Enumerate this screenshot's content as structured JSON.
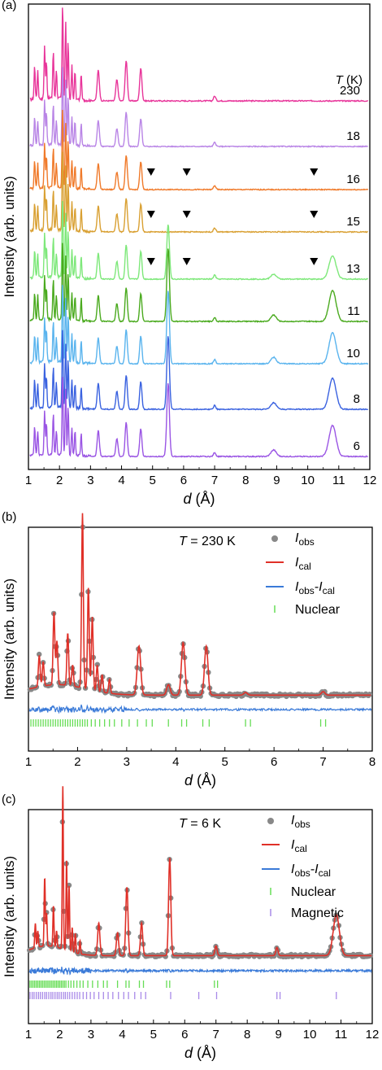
{
  "chart_data": [
    {
      "panel_label": "(a)",
      "type": "line",
      "title": "",
      "xlabel": "d (Å)",
      "xlabel_var": "d",
      "xlabel_unit": " (Å)",
      "ylabel": "Intensity (arb. units)",
      "xlim": [
        1,
        12
      ],
      "xticks": [
        1,
        2,
        3,
        4,
        5,
        6,
        7,
        8,
        9,
        10,
        11,
        12
      ],
      "temperature_header": {
        "var": "T",
        "unit": " (K)"
      },
      "series": [
        {
          "name": "230",
          "color": "#e8359a",
          "magnetic": false,
          "magnetic_peaks": [
            5.5,
            10.8
          ],
          "magnetic_fraction": 0.0
        },
        {
          "name": "18",
          "color": "#b985e6",
          "magnetic": false,
          "magnetic_peaks": [
            5.5,
            10.8
          ],
          "magnetic_fraction": 0.0
        },
        {
          "name": "16",
          "color": "#f07a2a",
          "magnetic": false,
          "magnetic_peaks": [
            5.5,
            10.8
          ],
          "magnetic_fraction": 0.0
        },
        {
          "name": "15",
          "color": "#d9a032",
          "magnetic": false,
          "magnetic_peaks": [
            5.5,
            10.8
          ],
          "magnetic_fraction": 0.0
        },
        {
          "name": "13",
          "color": "#7ee87a",
          "magnetic": true,
          "magnetic_peaks": [
            5.5,
            10.8
          ],
          "magnetic_fraction": 0.75
        },
        {
          "name": "11",
          "color": "#4aaa1e",
          "magnetic": true,
          "magnetic_peaks": [
            5.5,
            10.8
          ],
          "magnetic_fraction": 1.0
        },
        {
          "name": "10",
          "color": "#5ab4ee",
          "magnetic": true,
          "magnetic_peaks": [
            5.5,
            10.8
          ],
          "magnetic_fraction": 1.0
        },
        {
          "name": "8",
          "color": "#3a62e0",
          "magnetic": true,
          "magnetic_peaks": [
            5.5,
            10.8
          ],
          "magnetic_fraction": 1.0
        },
        {
          "name": "6",
          "color": "#9a55e4",
          "magnetic": true,
          "magnetic_peaks": [
            5.5,
            10.8
          ],
          "magnetic_fraction": 1.0
        }
      ],
      "nuclear_peaks_d": [
        1.2,
        1.3,
        1.52,
        1.58,
        1.8,
        1.9,
        2.1,
        2.2,
        2.28,
        2.4,
        2.5,
        2.7,
        3.25,
        3.85,
        4.15,
        4.62,
        7.0
      ],
      "incommensurate_markers": [
        {
          "series": "16",
          "d": [
            4.95,
            6.1,
            10.2
          ]
        },
        {
          "series": "15",
          "d": [
            4.95,
            6.1,
            10.2
          ]
        },
        {
          "series": "13",
          "d": [
            4.95,
            6.1,
            10.2
          ]
        }
      ]
    },
    {
      "panel_label": "(b)",
      "type": "scatter",
      "title": "",
      "annotation": "T = 230 K",
      "annotation_var": "T",
      "annotation_rest": " = 230 K",
      "xlabel": "d (Å)",
      "xlabel_var": "d",
      "xlabel_unit": " (Å)",
      "ylabel": "Intensity (arb. units)",
      "xlim": [
        1,
        8
      ],
      "xticks": [
        1,
        2,
        3,
        4,
        5,
        6,
        7,
        8
      ],
      "legend": {
        "obs": {
          "base": "I",
          "sub": "obs",
          "color": "#888888"
        },
        "cal": {
          "base": "I",
          "sub": "cal",
          "color": "#e03028"
        },
        "diff": {
          "base1": "I",
          "sub1": "obs",
          "dash": "-",
          "base2": "I",
          "sub2": "cal",
          "color": "#3a7ad8"
        },
        "nuclear": {
          "label": "Nuclear",
          "color": "#66dd55"
        }
      },
      "peaks": [
        {
          "d": 1.22,
          "h": 0.18
        },
        {
          "d": 1.3,
          "h": 0.14
        },
        {
          "d": 1.52,
          "h": 0.42
        },
        {
          "d": 1.58,
          "h": 0.25
        },
        {
          "d": 1.8,
          "h": 0.3
        },
        {
          "d": 1.9,
          "h": 0.12
        },
        {
          "d": 2.1,
          "h": 1.0
        },
        {
          "d": 2.22,
          "h": 0.58
        },
        {
          "d": 2.3,
          "h": 0.42
        },
        {
          "d": 2.4,
          "h": 0.15
        },
        {
          "d": 2.5,
          "h": 0.1
        },
        {
          "d": 2.65,
          "h": 0.08
        },
        {
          "d": 3.25,
          "h": 0.28
        },
        {
          "d": 3.85,
          "h": 0.06
        },
        {
          "d": 4.15,
          "h": 0.3
        },
        {
          "d": 4.62,
          "h": 0.28
        },
        {
          "d": 5.42,
          "h": 0.015
        },
        {
          "d": 7.0,
          "h": 0.02
        }
      ],
      "nuclear_ticks": [
        1.05,
        1.1,
        1.15,
        1.2,
        1.25,
        1.3,
        1.35,
        1.4,
        1.45,
        1.5,
        1.55,
        1.6,
        1.65,
        1.7,
        1.75,
        1.8,
        1.85,
        1.9,
        1.95,
        2.0,
        2.05,
        2.1,
        2.15,
        2.2,
        2.28,
        2.36,
        2.45,
        2.55,
        2.65,
        2.75,
        2.9,
        3.05,
        3.22,
        3.4,
        3.52,
        3.85,
        4.12,
        4.22,
        4.55,
        4.68,
        5.42,
        5.52,
        6.95,
        7.05
      ]
    },
    {
      "panel_label": "(c)",
      "type": "scatter",
      "title": "",
      "annotation": "T = 6 K",
      "annotation_var": "T",
      "annotation_rest": " = 6 K",
      "xlabel": "d (Å)",
      "xlabel_var": "d",
      "xlabel_unit": " (Å)",
      "ylabel": "Intensity (arb. units)",
      "xlim": [
        1,
        12
      ],
      "xticks": [
        1,
        2,
        3,
        4,
        5,
        6,
        7,
        8,
        9,
        10,
        11,
        12
      ],
      "legend": {
        "obs": {
          "base": "I",
          "sub": "obs",
          "color": "#888888"
        },
        "cal": {
          "base": "I",
          "sub": "cal",
          "color": "#e03028"
        },
        "diff": {
          "base1": "I",
          "sub1": "obs",
          "dash": "-",
          "base2": "I",
          "sub2": "cal",
          "color": "#3a7ad8"
        },
        "nuclear": {
          "label": "Nuclear",
          "color": "#66dd55"
        },
        "magnetic": {
          "label": "Magnetic",
          "color": "#a98ae8"
        }
      },
      "peaks": [
        {
          "d": 1.22,
          "h": 0.15
        },
        {
          "d": 1.3,
          "h": 0.1
        },
        {
          "d": 1.52,
          "h": 0.42
        },
        {
          "d": 1.58,
          "h": 0.2
        },
        {
          "d": 1.8,
          "h": 0.25
        },
        {
          "d": 1.9,
          "h": 0.1
        },
        {
          "d": 2.1,
          "h": 1.0
        },
        {
          "d": 2.22,
          "h": 0.55
        },
        {
          "d": 2.3,
          "h": 0.4
        },
        {
          "d": 2.4,
          "h": 0.15
        },
        {
          "d": 2.5,
          "h": 0.12
        },
        {
          "d": 2.65,
          "h": 0.08
        },
        {
          "d": 3.25,
          "h": 0.2
        },
        {
          "d": 3.85,
          "h": 0.14
        },
        {
          "d": 4.15,
          "h": 0.42
        },
        {
          "d": 4.62,
          "h": 0.2
        },
        {
          "d": 5.52,
          "h": 0.6
        },
        {
          "d": 7.0,
          "h": 0.06
        },
        {
          "d": 8.95,
          "h": 0.05
        },
        {
          "d": 10.85,
          "h": 0.25
        }
      ],
      "nuclear_ticks": [
        1.05,
        1.1,
        1.15,
        1.2,
        1.25,
        1.3,
        1.35,
        1.4,
        1.45,
        1.5,
        1.55,
        1.6,
        1.65,
        1.7,
        1.75,
        1.8,
        1.85,
        1.9,
        1.95,
        2.0,
        2.05,
        2.1,
        2.15,
        2.2,
        2.28,
        2.36,
        2.45,
        2.55,
        2.65,
        2.75,
        2.9,
        3.05,
        3.22,
        3.4,
        3.52,
        3.85,
        4.12,
        4.22,
        4.55,
        4.68,
        5.42,
        5.52,
        6.95,
        7.05
      ],
      "magnetic_ticks": [
        1.05,
        1.12,
        1.18,
        1.25,
        1.32,
        1.38,
        1.45,
        1.52,
        1.58,
        1.65,
        1.72,
        1.78,
        1.85,
        1.92,
        1.98,
        2.05,
        2.12,
        2.18,
        2.25,
        2.32,
        2.4,
        2.48,
        2.56,
        2.64,
        2.75,
        2.86,
        2.98,
        3.1,
        3.25,
        3.4,
        3.55,
        3.7,
        3.88,
        4.05,
        4.2,
        4.4,
        4.6,
        4.75,
        5.55,
        6.45,
        7.02,
        8.95,
        9.05,
        10.85
      ]
    }
  ]
}
